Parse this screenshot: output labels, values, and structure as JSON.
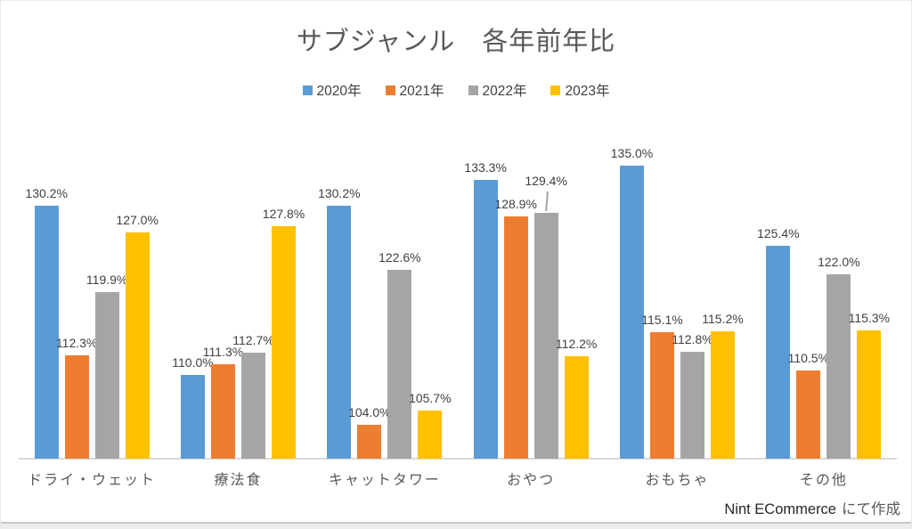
{
  "title": "サブジャンル　各年前年比",
  "chart_data": {
    "type": "bar",
    "title": "サブジャンル　各年前年比",
    "categories": [
      "ドライ・ウェット",
      "療法食",
      "キャットタワー",
      "おやつ",
      "おもちゃ",
      "その他"
    ],
    "series": [
      {
        "name": "2020年",
        "color": "#5B9BD5",
        "values": [
          130.2,
          110.0,
          130.2,
          133.3,
          135.0,
          125.4
        ]
      },
      {
        "name": "2021年",
        "color": "#ED7D31",
        "values": [
          112.3,
          111.3,
          104.0,
          128.9,
          115.1,
          110.5
        ]
      },
      {
        "name": "2022年",
        "color": "#A5A5A5",
        "values": [
          119.9,
          112.7,
          122.6,
          129.4,
          112.8,
          122.0
        ]
      },
      {
        "name": "2023年",
        "color": "#FFC000",
        "values": [
          127.0,
          127.8,
          105.7,
          112.2,
          115.2,
          115.3
        ]
      }
    ],
    "value_format": "0.0%",
    "ylim": [
      100,
      140
    ],
    "grid": false,
    "legend_position": "top",
    "data_labels": true,
    "label_callout": {
      "series_index": 2,
      "category_index": 3
    }
  },
  "footer": {
    "credit_tool": "Nint ECommerce",
    "credit_suffix": "にて作成"
  },
  "colors": {
    "axis_line": "#D9D9D9",
    "data_label_text": "#404040",
    "category_text": "#595959",
    "title_text": "#595959"
  }
}
